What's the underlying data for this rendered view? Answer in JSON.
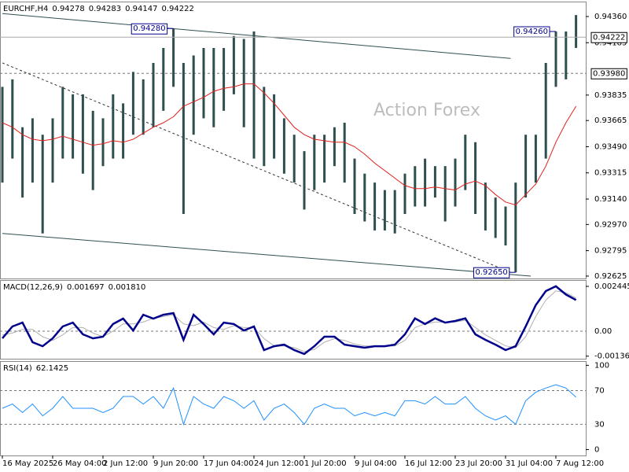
{
  "chart_data": [
    {
      "type": "ohlc",
      "title": "EURCHF,H4",
      "title_values": [
        0.94278,
        0.94283,
        0.94147,
        0.94222
      ],
      "watermark": "Action Forex",
      "color": "#2f4f4f",
      "high": [
        0.9389,
        0.9394,
        0.9362,
        0.9368,
        0.9357,
        0.9368,
        0.9389,
        0.9384,
        0.9384,
        0.9373,
        0.9368,
        0.9384,
        0.9378,
        0.9399,
        0.9394,
        0.9405,
        0.9415,
        0.9428,
        0.9405,
        0.941,
        0.9415,
        0.9415,
        0.9415,
        0.9423,
        0.9421,
        0.9426,
        0.9389,
        0.9384,
        0.9368,
        0.9357,
        0.9346,
        0.9357,
        0.9357,
        0.9362,
        0.9365,
        0.9341,
        0.9331,
        0.9325,
        0.932,
        0.932,
        0.9331,
        0.9336,
        0.9341,
        0.9336,
        0.9336,
        0.9341,
        0.9357,
        0.9352,
        0.9325,
        0.9315,
        0.9309,
        0.9325,
        0.9357,
        0.9357,
        0.9405,
        0.9426,
        0.9426,
        0.9437
      ],
      "low": [
        0.9325,
        0.9341,
        0.9315,
        0.9325,
        0.9291,
        0.9325,
        0.9341,
        0.9341,
        0.9331,
        0.932,
        0.9336,
        0.9341,
        0.9341,
        0.9357,
        0.9357,
        0.9362,
        0.9373,
        0.9389,
        0.9304,
        0.9357,
        0.9368,
        0.9362,
        0.9373,
        0.9384,
        0.9362,
        0.9341,
        0.9336,
        0.9341,
        0.9331,
        0.9325,
        0.9307,
        0.932,
        0.9325,
        0.9336,
        0.9325,
        0.9304,
        0.9299,
        0.9293,
        0.9293,
        0.9291,
        0.9304,
        0.9309,
        0.9309,
        0.9315,
        0.9299,
        0.9309,
        0.932,
        0.9304,
        0.9293,
        0.9288,
        0.9283,
        0.9265,
        0.9315,
        0.9325,
        0.9341,
        0.9389,
        0.9394,
        0.9415
      ],
      "ma": {
        "color": "#e0201c",
        "values": [
          0.9365,
          0.9362,
          0.9357,
          0.9354,
          0.9353,
          0.9354,
          0.9356,
          0.9354,
          0.9352,
          0.935,
          0.9351,
          0.9353,
          0.9352,
          0.9354,
          0.9358,
          0.9362,
          0.9365,
          0.9369,
          0.9376,
          0.9379,
          0.9382,
          0.9386,
          0.9388,
          0.9389,
          0.9391,
          0.9391,
          0.9385,
          0.9378,
          0.937,
          0.9362,
          0.9357,
          0.9354,
          0.9353,
          0.9352,
          0.9352,
          0.9349,
          0.9344,
          0.9338,
          0.9333,
          0.9328,
          0.9323,
          0.9321,
          0.9321,
          0.9322,
          0.9321,
          0.932,
          0.9324,
          0.9326,
          0.9323,
          0.9317,
          0.9312,
          0.931,
          0.9317,
          0.9324,
          0.9336,
          0.9352,
          0.9365,
          0.9376
        ]
      },
      "trendlines": [
        {
          "x": [
            0,
            50.5
          ],
          "y": [
            0.9438,
            0.9408
          ],
          "style": "solid",
          "color": "#2f4f4f"
        },
        {
          "x": [
            0,
            52.5
          ],
          "y": [
            0.9291,
            0.92625
          ],
          "style": "solid",
          "color": "#2f4f4f"
        },
        {
          "x": [
            0,
            50.5
          ],
          "y": [
            0.9405,
            0.9265
          ],
          "style": "dashed",
          "color": "#333333"
        }
      ],
      "annotations": [
        {
          "x": 17,
          "value": 0.9428,
          "label": "0.94280"
        },
        {
          "x": 55,
          "value": 0.9426,
          "label": "0.94260"
        },
        {
          "x": 51,
          "value": 0.9265,
          "label": "0.92650"
        }
      ],
      "levels": [
        {
          "value": 0.9398,
          "label": "0.93980"
        }
      ],
      "boxed_levels": true,
      "last_price": 0.94222,
      "ylim": [
        0.92609,
        0.9446
      ],
      "yticks": [
        {
          "value": 0.9436,
          "label": "0.94360"
        },
        0.94185,
        0.93835,
        0.93665,
        {
          "value": 0.9349,
          "label": "0.93490"
        },
        0.93315,
        {
          "value": 0.9314,
          "label": "0.93140"
        },
        {
          "value": 0.9297,
          "label": "0.92970"
        },
        0.92795,
        0.92625
      ]
    },
    {
      "type": "macd",
      "title": "MACD(12,26,9)",
      "title_values": [
        0.001697,
        {
          "value": 0.00181,
          "label": "0.001810"
        }
      ],
      "macd": {
        "color": "#00008b",
        "values": [
          -0.00039,
          0.00026,
          0.00047,
          -0.0006,
          -0.00082,
          -0.00039,
          0.00026,
          0.00047,
          -0.00017,
          -0.00039,
          -0.0003,
          0.00039,
          0.00069,
          4e-05,
          0.0009,
          0.00069,
          0.0009,
          0.00099,
          -0.00047,
          0.0009,
          0.00039,
          -0.00017,
          0.00047,
          0.00039,
          4e-05,
          0.00026,
          -0.00103,
          -0.00082,
          -0.00073,
          -0.00103,
          -0.00124,
          -0.00082,
          -0.0003,
          -0.0003,
          -0.00073,
          -0.00082,
          -0.0009,
          -0.00082,
          -0.00082,
          -0.00073,
          -0.00017,
          0.0007,
          0.00039,
          0.0007,
          0.00047,
          0.00056,
          0.0007,
          -0.00017,
          -0.00047,
          -0.00073,
          -0.00103,
          -0.00082,
          0.00026,
          0.00142,
          0.00219,
          0.00245,
          0.002,
          0.0017
        ]
      },
      "signal": {
        "color": "#b0b0b0",
        "values": [
          -0.0002,
          -0.0001,
          0.0001,
          0.0001,
          -0.0003,
          -0.0005,
          -0.0002,
          0.0002,
          0.0002,
          -0.0001,
          -0.0003,
          0,
          0.0004,
          0.0004,
          0.0005,
          0.0007,
          0.0008,
          0.0009,
          0.0004,
          0.0003,
          0.0005,
          0.0002,
          0.0001,
          0.0003,
          0.0002,
          0.0002,
          -0.0004,
          -0.0008,
          -0.0008,
          -0.0009,
          -0.0011,
          -0.001,
          -0.0006,
          -0.0004,
          -0.0005,
          -0.0007,
          -0.0008,
          -0.0008,
          -0.0008,
          -0.0008,
          -0.0005,
          0.0002,
          0.0004,
          0.0005,
          0.0005,
          0.0005,
          0.0006,
          0.0002,
          -0.0002,
          -0.0005,
          -0.0008,
          -0.0009,
          -0.0003,
          0.0008,
          0.0017,
          0.0022,
          0.0021,
          0.00181
        ]
      },
      "levels": [
        {
          "value": 0,
          "label": "0.00"
        }
      ],
      "ylim": [
        -0.0015,
        0.00279
      ],
      "yticks": [
        0.002445,
        -0.00136
      ]
    },
    {
      "type": "rsi",
      "title": "RSI(14)",
      "title_values": [
        62.1425
      ],
      "color": "#1e90ff",
      "values": [
        49,
        54,
        44,
        54,
        40,
        49,
        63,
        49,
        49,
        49,
        44,
        49,
        63,
        63,
        54,
        63,
        49,
        73,
        30,
        63,
        54,
        49,
        63,
        58,
        49,
        58,
        35,
        49,
        54,
        44,
        30,
        49,
        54,
        49,
        49,
        40,
        44,
        40,
        44,
        40,
        58,
        58,
        54,
        63,
        54,
        54,
        63,
        49,
        40,
        35,
        40,
        30,
        58,
        68,
        73,
        77,
        73,
        62.1425
      ],
      "levels": [
        70,
        30
      ],
      "ylim": [
        -7,
        105
      ],
      "yticks": [
        100,
        0
      ],
      "categories": [
        "16 May 2025",
        null,
        null,
        null,
        null,
        "26 May 04:00",
        null,
        null,
        null,
        null,
        "2 Jun 12:00",
        null,
        null,
        null,
        null,
        "9 Jun 20:00",
        null,
        null,
        null,
        null,
        "17 Jun 04:00",
        null,
        null,
        null,
        null,
        "24 Jun 12:00",
        null,
        null,
        null,
        null,
        "1 Jul 20:00",
        null,
        null,
        null,
        null,
        "9 Jul 04:00",
        null,
        null,
        null,
        null,
        "16 Jul 12:00",
        null,
        null,
        null,
        null,
        "23 Jul 20:00",
        null,
        null,
        null,
        null,
        "31 Jul 04:00",
        null,
        null,
        null,
        null,
        "7 Aug 12:00",
        null,
        null
      ]
    }
  ]
}
